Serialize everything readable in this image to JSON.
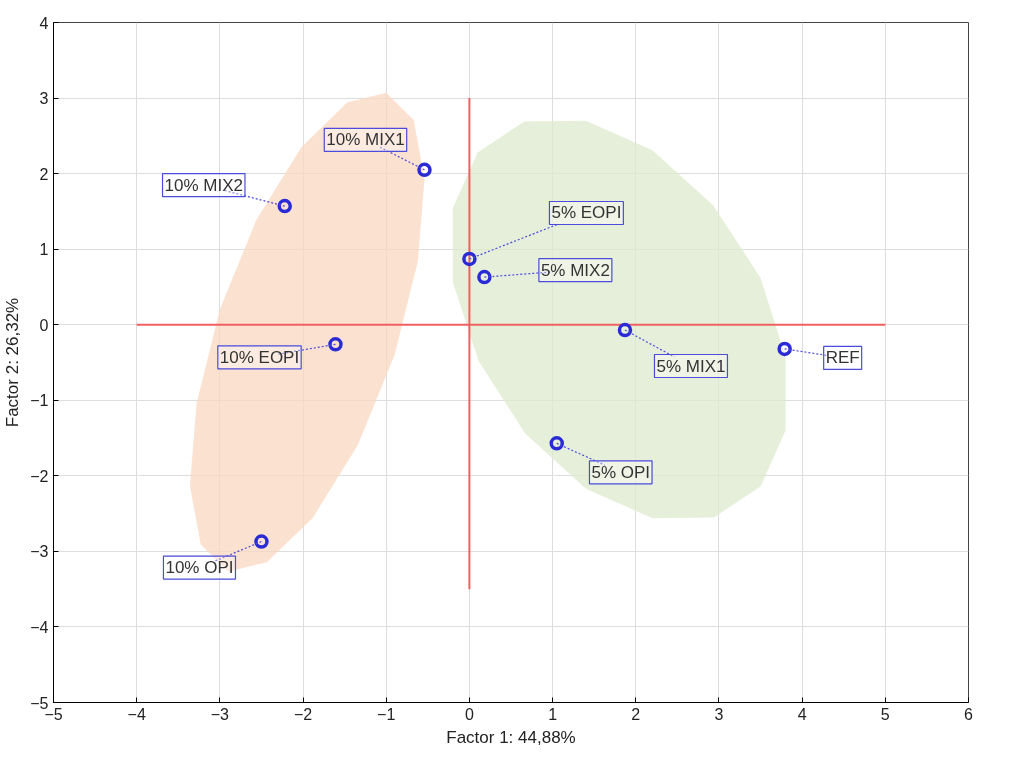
{
  "chart_data": {
    "type": "scatter",
    "xlabel": "Factor 1: 44,88%",
    "ylabel": "Factor 2: 26,32%",
    "xlim": [
      -5,
      6
    ],
    "ylim": [
      -5,
      4
    ],
    "xticks": [
      -5,
      -4,
      -3,
      -2,
      -1,
      0,
      1,
      2,
      3,
      4,
      5,
      6
    ],
    "yticks": [
      -5,
      -4,
      -3,
      -2,
      -1,
      0,
      1,
      2,
      3,
      4
    ],
    "grid": true,
    "series": [
      {
        "type": "area",
        "color": "#fad7c0",
        "x": [
          -1.0,
          -0.67,
          -0.54,
          -0.62,
          -0.9,
          -1.34,
          -1.88,
          -2.43,
          -2.9,
          -3.23,
          -3.36,
          -3.28,
          -3.0,
          -2.56,
          -2.02,
          -1.47
        ],
        "values": [
          3.07,
          2.71,
          1.93,
          0.84,
          -0.4,
          -1.59,
          -2.55,
          -3.14,
          -3.27,
          -2.91,
          -2.13,
          -1.04,
          0.2,
          1.39,
          2.35,
          2.94
        ]
      },
      {
        "type": "area",
        "color": "#dde9cd",
        "x": [
          1.4,
          2.2,
          2.93,
          3.5,
          3.8,
          3.8,
          3.5,
          2.94,
          2.2,
          1.4,
          0.67,
          0.11,
          -0.2,
          -0.2,
          0.1,
          0.66
        ],
        "values": [
          2.7,
          2.31,
          1.58,
          0.62,
          -0.43,
          -1.4,
          -2.14,
          -2.55,
          -2.56,
          -2.17,
          -1.44,
          -0.48,
          0.57,
          1.54,
          2.28,
          2.69
        ]
      },
      {
        "type": "line",
        "color": "#f06060",
        "x": [
          -4,
          5
        ],
        "values": [
          0,
          0
        ]
      },
      {
        "type": "line",
        "color": "#f06060",
        "x": [
          0,
          0
        ],
        "values": [
          -3.5,
          3
        ]
      },
      {
        "marker": "circle",
        "color": "#2b2bd6",
        "x": [
          -0.54,
          -2.22,
          0.0,
          0.18,
          1.87,
          3.79,
          -1.61,
          1.05,
          -2.5
        ],
        "values": [
          2.05,
          1.57,
          0.87,
          0.63,
          -0.07,
          -0.32,
          -0.26,
          -1.57,
          -2.87
        ]
      }
    ],
    "annotations": [
      {
        "text": "10% MIX1",
        "x": -0.54,
        "y": 2.05
      },
      {
        "text": "10% MIX2",
        "x": -2.22,
        "y": 1.57
      },
      {
        "text": "5% EOPI",
        "x": 0.0,
        "y": 0.87
      },
      {
        "text": "5% MIX2",
        "x": 0.18,
        "y": 0.63
      },
      {
        "text": "5% MIX1",
        "x": 1.87,
        "y": -0.07
      },
      {
        "text": "REF",
        "x": 3.79,
        "y": -0.32
      },
      {
        "text": "10% EOPI",
        "x": -1.61,
        "y": -0.26
      },
      {
        "text": "5% OPI",
        "x": 1.05,
        "y": -1.57
      },
      {
        "text": "10% OPI",
        "x": -2.5,
        "y": -2.87
      }
    ]
  }
}
